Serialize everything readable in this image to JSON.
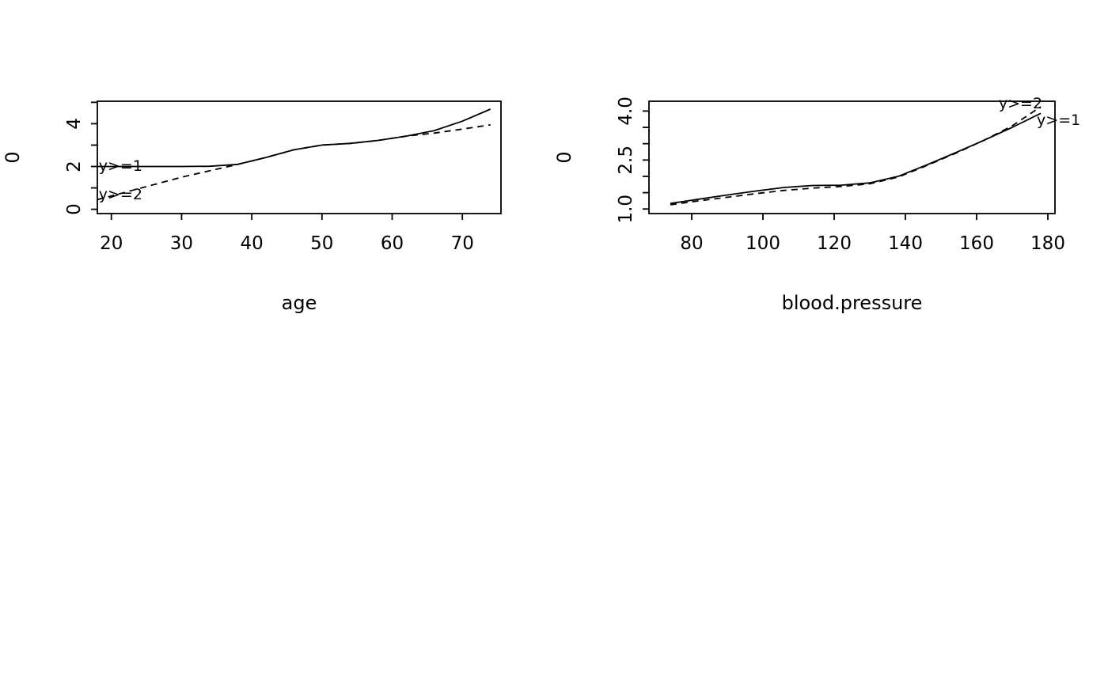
{
  "page": {
    "background": "#ffffff",
    "foreground": "#000000"
  },
  "chart_data": [
    {
      "type": "line",
      "title": "",
      "xlabel": "age",
      "ylabel": "0",
      "xlim": [
        18,
        75.5
      ],
      "ylim": [
        -0.2,
        5.05
      ],
      "xticks": [
        20,
        30,
        40,
        50,
        60,
        70
      ],
      "xtick_labels": [
        "20",
        "30",
        "40",
        "50",
        "60",
        "70"
      ],
      "yticks": [
        0,
        1,
        2,
        3,
        4,
        5
      ],
      "ytick_labels": [
        "0",
        "",
        "2",
        "",
        "4",
        ""
      ],
      "grid": false,
      "legend": "curve-end-labels",
      "series": [
        {
          "name": "y>=1",
          "style": "solid",
          "x": [
            18,
            24,
            30,
            34,
            38,
            42,
            46,
            50,
            54,
            58,
            62,
            66,
            70,
            74
          ],
          "y": [
            2.0,
            2.0,
            2.0,
            2.01,
            2.1,
            2.42,
            2.78,
            3.0,
            3.08,
            3.22,
            3.42,
            3.68,
            4.12,
            4.68
          ]
        },
        {
          "name": "y>=2",
          "style": "dashed",
          "x": [
            18,
            22,
            26,
            30,
            34,
            38,
            42,
            46,
            50,
            54,
            58,
            62,
            66,
            70,
            74
          ],
          "y": [
            0.45,
            0.8,
            1.15,
            1.5,
            1.8,
            2.1,
            2.42,
            2.78,
            3.0,
            3.08,
            3.22,
            3.42,
            3.56,
            3.75,
            3.95
          ]
        }
      ],
      "annotations": [
        {
          "text": "y>=1",
          "x": 18.2,
          "y": 2.0
        },
        {
          "text": "y>=2",
          "x": 18.2,
          "y": 0.66
        }
      ]
    },
    {
      "type": "line",
      "title": "",
      "xlabel": "blood.pressure",
      "ylabel": "0",
      "xlim": [
        68,
        182
      ],
      "ylim": [
        0.86,
        4.3
      ],
      "xticks": [
        80,
        100,
        120,
        140,
        160,
        180
      ],
      "xtick_labels": [
        "80",
        "100",
        "120",
        "140",
        "160",
        "180"
      ],
      "yticks": [
        1.0,
        1.5,
        2.0,
        2.5,
        3.0,
        3.5,
        4.0
      ],
      "ytick_labels": [
        "1.0",
        "",
        "",
        "2.5",
        "",
        "",
        "4.0"
      ],
      "grid": false,
      "legend": "curve-end-labels",
      "series": [
        {
          "name": "y>=1",
          "style": "solid",
          "x": [
            74,
            82,
            90,
            98,
            106,
            114,
            122,
            130,
            138,
            146,
            154,
            162,
            170,
            178
          ],
          "y": [
            1.17,
            1.3,
            1.43,
            1.55,
            1.66,
            1.72,
            1.73,
            1.8,
            2.0,
            2.35,
            2.72,
            3.1,
            3.5,
            3.93
          ]
        },
        {
          "name": "y>=2",
          "style": "dashed",
          "x": [
            74,
            82,
            90,
            98,
            106,
            114,
            122,
            130,
            138,
            146,
            154,
            162,
            170,
            178
          ],
          "y": [
            1.13,
            1.25,
            1.36,
            1.47,
            1.57,
            1.64,
            1.69,
            1.77,
            1.98,
            2.33,
            2.7,
            3.1,
            3.55,
            4.13
          ]
        }
      ],
      "annotations": [
        {
          "text": "y>=2",
          "x": 166.2,
          "y": 4.21
        },
        {
          "text": "y>=1",
          "x": 176.9,
          "y": 3.71
        }
      ]
    }
  ]
}
